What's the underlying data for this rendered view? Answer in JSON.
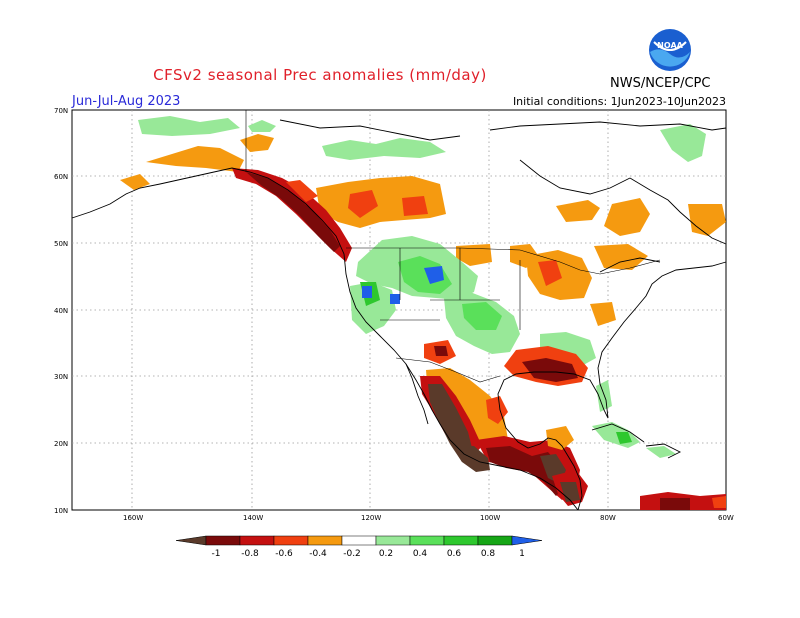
{
  "header": {
    "title": "CFSv2 seasonal Prec anomalies (mm/day)",
    "period": "Jun-Jul-Aug 2023",
    "initial_conditions": "Initial conditions: 1Jun2023-10Jun2023",
    "agency": "NWS/NCEP/CPC",
    "logo_text": "NOAA"
  },
  "axes": {
    "lat_labels": [
      "70N",
      "60N",
      "50N",
      "40N",
      "30N",
      "20N",
      "10N"
    ],
    "lon_labels": [
      "160W",
      "140W",
      "120W",
      "100W",
      "80W",
      "60W"
    ]
  },
  "colorbar": {
    "labels": [
      "-1",
      "-0.8",
      "-0.6",
      "-0.4",
      "-0.2",
      "0.2",
      "0.4",
      "0.6",
      "0.8",
      "1"
    ],
    "colors": [
      "#5a3a2a",
      "#7a0a0a",
      "#c41010",
      "#f04010",
      "#f59a10",
      "#ffffff",
      "#98e898",
      "#5ae05a",
      "#2ec82e",
      "#16a616",
      "#1f5fe8"
    ]
  }
}
